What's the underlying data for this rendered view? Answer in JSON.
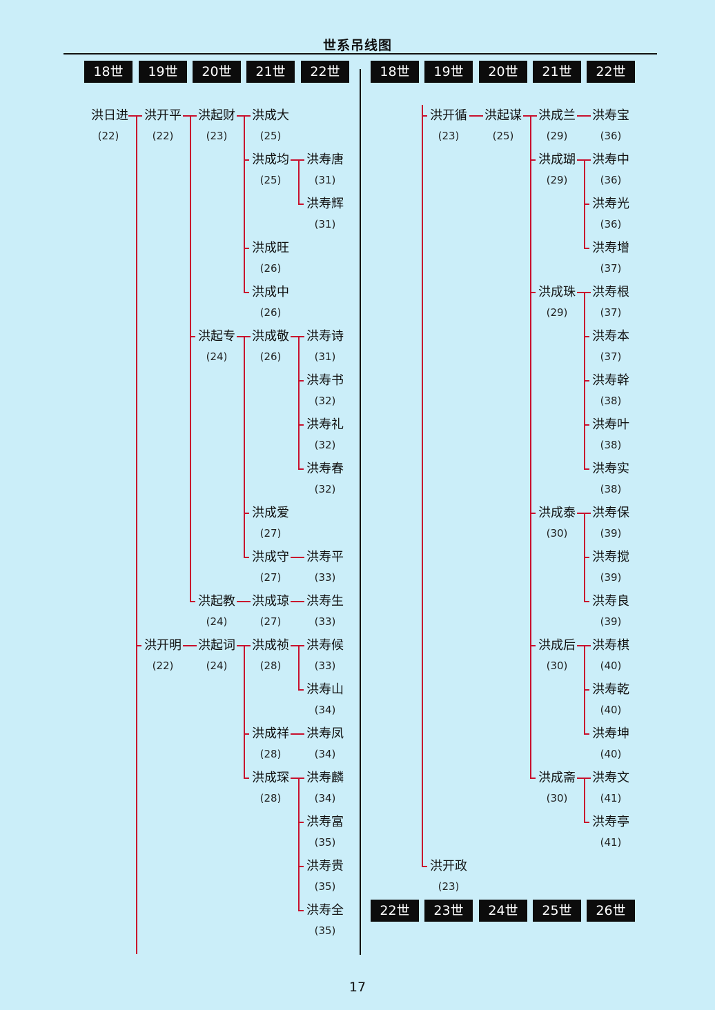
{
  "title": "世系吊线图",
  "page_number": "17",
  "left_headers": [
    "18世",
    "19世",
    "20世",
    "21世",
    "22世"
  ],
  "right_top_headers": [
    "18世",
    "19世",
    "20世",
    "21世",
    "22世"
  ],
  "right_bottom_headers": [
    "22世",
    "23世",
    "24世",
    "25世",
    "26世"
  ],
  "left": {
    "r18": {
      "name": "洪日进",
      "num": "(22)"
    },
    "r19a": {
      "name": "洪开平",
      "num": "(22)"
    },
    "r20a": {
      "name": "洪起财",
      "num": "(23)"
    },
    "r21a": {
      "name": "洪成大",
      "num": "(25)"
    },
    "r21b": {
      "name": "洪成均",
      "num": "(25)"
    },
    "r22a": {
      "name": "洪寿唐",
      "num": "(31)"
    },
    "r22b": {
      "name": "洪寿辉",
      "num": "(31)"
    },
    "r21c": {
      "name": "洪成旺",
      "num": "(26)"
    },
    "r21d": {
      "name": "洪成中",
      "num": "(26)"
    },
    "r20b": {
      "name": "洪起专",
      "num": "(24)"
    },
    "r21e": {
      "name": "洪成敬",
      "num": "(26)"
    },
    "r22c": {
      "name": "洪寿诗",
      "num": "(31)"
    },
    "r22d": {
      "name": "洪寿书",
      "num": "(32)"
    },
    "r22e": {
      "name": "洪寿礼",
      "num": "(32)"
    },
    "r22f": {
      "name": "洪寿春",
      "num": "(32)"
    },
    "r21f": {
      "name": "洪成爱",
      "num": "(27)"
    },
    "r21g": {
      "name": "洪成守",
      "num": "(27)"
    },
    "r22g": {
      "name": "洪寿平",
      "num": "(33)"
    },
    "r20c": {
      "name": "洪起教",
      "num": "(24)"
    },
    "r21h": {
      "name": "洪成琼",
      "num": "(27)"
    },
    "r22h": {
      "name": "洪寿生",
      "num": "(33)"
    },
    "r19b": {
      "name": "洪开明",
      "num": "(22)"
    },
    "r20d": {
      "name": "洪起词",
      "num": "(24)"
    },
    "r21i": {
      "name": "洪成祯",
      "num": "(28)"
    },
    "r22i": {
      "name": "洪寿候",
      "num": "(33)"
    },
    "r22j": {
      "name": "洪寿山",
      "num": "(34)"
    },
    "r21j": {
      "name": "洪成祥",
      "num": "(28)"
    },
    "r22k": {
      "name": "洪寿凤",
      "num": "(34)"
    },
    "r21k": {
      "name": "洪成琛",
      "num": "(28)"
    },
    "r22l": {
      "name": "洪寿麟",
      "num": "(34)"
    },
    "r22m": {
      "name": "洪寿富",
      "num": "(35)"
    },
    "r22n": {
      "name": "洪寿贵",
      "num": "(35)"
    },
    "r22o": {
      "name": "洪寿全",
      "num": "(35)"
    }
  },
  "right": {
    "s19a": {
      "name": "洪开循",
      "num": "(23)"
    },
    "s20a": {
      "name": "洪起谋",
      "num": "(25)"
    },
    "s21a": {
      "name": "洪成兰",
      "num": "(29)"
    },
    "s22a": {
      "name": "洪寿宝",
      "num": "(36)"
    },
    "s21b": {
      "name": "洪成瑚",
      "num": "(29)"
    },
    "s22b": {
      "name": "洪寿中",
      "num": "(36)"
    },
    "s22c": {
      "name": "洪寿光",
      "num": "(36)"
    },
    "s22d": {
      "name": "洪寿增",
      "num": "(37)"
    },
    "s21c": {
      "name": "洪成珠",
      "num": "(29)"
    },
    "s22e": {
      "name": "洪寿根",
      "num": "(37)"
    },
    "s22f": {
      "name": "洪寿本",
      "num": "(37)"
    },
    "s22g": {
      "name": "洪寿幹",
      "num": "(38)"
    },
    "s22h": {
      "name": "洪寿叶",
      "num": "(38)"
    },
    "s22i": {
      "name": "洪寿实",
      "num": "(38)"
    },
    "s21d": {
      "name": "洪成泰",
      "num": "(30)"
    },
    "s22j": {
      "name": "洪寿保",
      "num": "(39)"
    },
    "s22k": {
      "name": "洪寿搅",
      "num": "(39)"
    },
    "s22l": {
      "name": "洪寿良",
      "num": "(39)"
    },
    "s21e": {
      "name": "洪成后",
      "num": "(30)"
    },
    "s22m": {
      "name": "洪寿棋",
      "num": "(40)"
    },
    "s22n": {
      "name": "洪寿乾",
      "num": "(40)"
    },
    "s22o": {
      "name": "洪寿坤",
      "num": "(40)"
    },
    "s21f": {
      "name": "洪成斋",
      "num": "(30)"
    },
    "s22p": {
      "name": "洪寿文",
      "num": "(41)"
    },
    "s22q": {
      "name": "洪寿亭",
      "num": "(41)"
    },
    "s19b": {
      "name": "洪开政",
      "num": "(23)"
    }
  }
}
